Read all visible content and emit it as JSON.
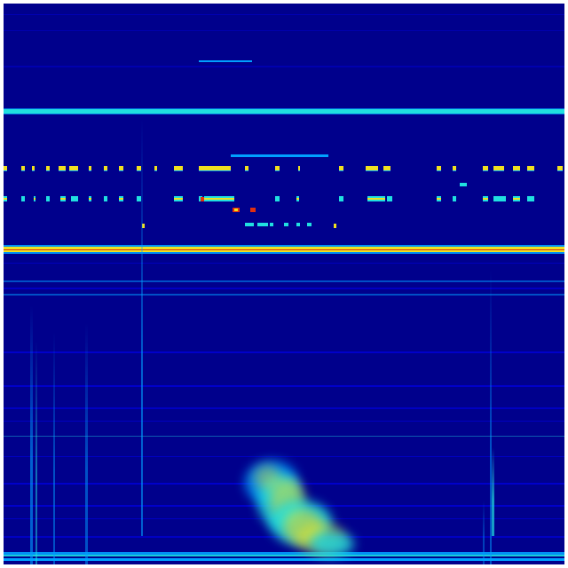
{
  "colors": {
    "background": "#00008c",
    "low": "#0000d0",
    "mid": "#00a0ff",
    "cyan": "#20e0e0",
    "yellow": "#f0e020",
    "red": "#e03010"
  }
}
